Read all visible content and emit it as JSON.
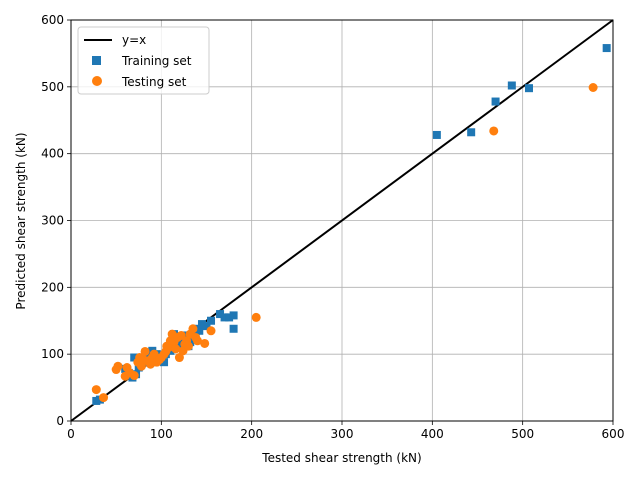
{
  "chart_data": {
    "type": "scatter",
    "title": "",
    "xlabel": "Tested shear strength (kN)",
    "ylabel": "Predicted shear strength (kN)",
    "xlim": [
      0,
      600
    ],
    "ylim": [
      0,
      600
    ],
    "xticks": [
      0,
      100,
      200,
      300,
      400,
      500,
      600
    ],
    "yticks": [
      0,
      100,
      200,
      300,
      400,
      500,
      600
    ],
    "grid": true,
    "legend_position": "top-left",
    "reference_line": {
      "name": "y=x",
      "color": "#000000",
      "from": [
        0,
        0
      ],
      "to": [
        600,
        600
      ]
    },
    "series": [
      {
        "name": "Training set",
        "marker": "square",
        "color": "#1f77b4",
        "points": [
          [
            28,
            30
          ],
          [
            32,
            32
          ],
          [
            60,
            78
          ],
          [
            64,
            72
          ],
          [
            68,
            65
          ],
          [
            70,
            95
          ],
          [
            72,
            70
          ],
          [
            75,
            80
          ],
          [
            80,
            88
          ],
          [
            85,
            95
          ],
          [
            90,
            105
          ],
          [
            92,
            88
          ],
          [
            95,
            100
          ],
          [
            98,
            95
          ],
          [
            100,
            92
          ],
          [
            103,
            88
          ],
          [
            105,
            100
          ],
          [
            108,
            110
          ],
          [
            110,
            105
          ],
          [
            112,
            120
          ],
          [
            114,
            130
          ],
          [
            116,
            125
          ],
          [
            118,
            112
          ],
          [
            120,
            118
          ],
          [
            125,
            128
          ],
          [
            128,
            115
          ],
          [
            130,
            112
          ],
          [
            132,
            118
          ],
          [
            135,
            130
          ],
          [
            138,
            132
          ],
          [
            140,
            138
          ],
          [
            142,
            135
          ],
          [
            145,
            145
          ],
          [
            150,
            142
          ],
          [
            155,
            150
          ],
          [
            165,
            160
          ],
          [
            170,
            155
          ],
          [
            175,
            155
          ],
          [
            180,
            158
          ],
          [
            180,
            138
          ],
          [
            405,
            428
          ],
          [
            443,
            432
          ],
          [
            470,
            478
          ],
          [
            488,
            502
          ],
          [
            507,
            498
          ],
          [
            593,
            558
          ]
        ]
      },
      {
        "name": "Testing set",
        "marker": "circle",
        "color": "#ff7f0e",
        "points": [
          [
            28,
            47
          ],
          [
            36,
            35
          ],
          [
            50,
            77
          ],
          [
            52,
            82
          ],
          [
            60,
            67
          ],
          [
            62,
            80
          ],
          [
            65,
            72
          ],
          [
            70,
            68
          ],
          [
            74,
            88
          ],
          [
            76,
            95
          ],
          [
            78,
            82
          ],
          [
            80,
            92
          ],
          [
            82,
            104
          ],
          [
            85,
            90
          ],
          [
            88,
            85
          ],
          [
            90,
            95
          ],
          [
            92,
            100
          ],
          [
            95,
            88
          ],
          [
            98,
            92
          ],
          [
            100,
            95
          ],
          [
            103,
            100
          ],
          [
            105,
            104
          ],
          [
            106,
            112
          ],
          [
            108,
            110
          ],
          [
            110,
            120
          ],
          [
            112,
            130
          ],
          [
            114,
            118
          ],
          [
            116,
            108
          ],
          [
            118,
            125
          ],
          [
            120,
            95
          ],
          [
            122,
            128
          ],
          [
            124,
            105
          ],
          [
            126,
            115
          ],
          [
            128,
            120
          ],
          [
            130,
            112
          ],
          [
            132,
            130
          ],
          [
            135,
            138
          ],
          [
            138,
            125
          ],
          [
            140,
            120
          ],
          [
            148,
            116
          ],
          [
            155,
            135
          ],
          [
            205,
            155
          ],
          [
            468,
            434
          ],
          [
            578,
            499
          ]
        ]
      }
    ]
  }
}
